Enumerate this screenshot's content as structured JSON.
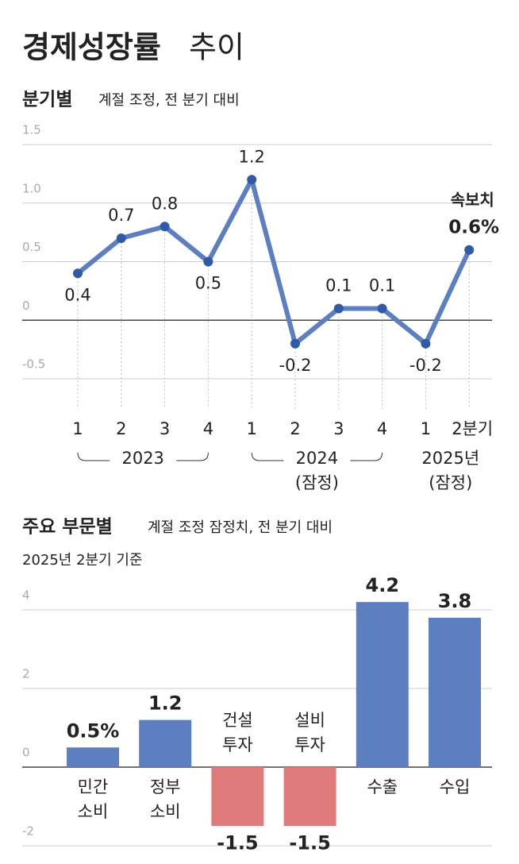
{
  "header": {
    "title": "경제성장률",
    "title_light": "추이"
  },
  "chart_data": [
    {
      "type": "line",
      "title": "분기별",
      "subtitle": "계절 조정, 전 분기 대비",
      "categories": [
        "1",
        "2",
        "3",
        "4",
        "1",
        "2",
        "3",
        "4",
        "1",
        "2분기"
      ],
      "values": [
        0.4,
        0.7,
        0.8,
        0.5,
        1.2,
        -0.2,
        0.1,
        0.1,
        -0.2,
        0.6
      ],
      "value_labels": [
        "0.4",
        "0.7",
        "0.8",
        "0.5",
        "1.2",
        "-0.2",
        "0.1",
        "0.1",
        "-0.2",
        "0.6%"
      ],
      "annotation": "속보치",
      "groups": [
        {
          "label": "2023"
        },
        {
          "label": "2024",
          "note": "(잠정)"
        },
        {
          "label": "2025년",
          "note": "(잠정)"
        }
      ],
      "color": "#5b7fc0",
      "ylim": [
        -0.5,
        1.5
      ],
      "yticks": [
        1.5,
        {
          "value": 1,
          "label": "1.0"
        },
        0.5,
        0,
        -0.5
      ]
    },
    {
      "type": "bar",
      "title": "주요 부문별",
      "subtitle": "계절 조정 잠정치, 전 분기 대비",
      "note": "2025년 2분기 기준",
      "categories": [
        [
          "민간",
          "소비"
        ],
        [
          "정부",
          "소비"
        ],
        [
          "건설",
          "투자"
        ],
        [
          "설비",
          "투자"
        ],
        [
          "수출"
        ],
        [
          "수입"
        ]
      ],
      "values": [
        0.5,
        1.2,
        -1.5,
        -1.5,
        4.2,
        3.8
      ],
      "value_labels": [
        "0.5%",
        "1.2",
        "-1.5",
        "-1.5",
        "4.2",
        "3.8"
      ],
      "colors": [
        "#5b7fc0",
        "#5b7fc0",
        "#e07b7b",
        "#e07b7b",
        "#5b7fc0",
        "#5b7fc0"
      ],
      "ylim": [
        -2,
        4
      ],
      "yticks": [
        4,
        2,
        0,
        -2
      ]
    }
  ]
}
